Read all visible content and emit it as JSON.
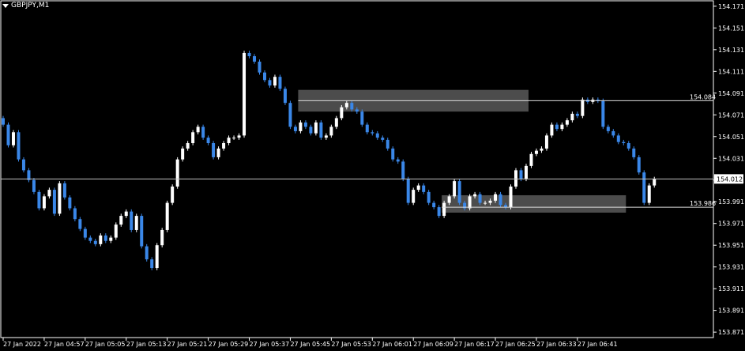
{
  "symbol_menu": {
    "label": "GBPJPY,M1"
  },
  "price_axis": {
    "ticks": [
      "154.171",
      "154.151",
      "154.131",
      "154.111",
      "154.091",
      "154.071",
      "154.051",
      "154.031",
      "154.011",
      "153.991",
      "153.971",
      "153.951",
      "153.931",
      "153.911",
      "153.891",
      "153.871"
    ],
    "current_price_label": "154.012"
  },
  "time_axis": {
    "labels": [
      "27 Jan 2022",
      "27 Jan 04:57",
      "27 Jan 05:05",
      "27 Jan 05:13",
      "27 Jan 05:21",
      "27 Jan 05:29",
      "27 Jan 05:37",
      "27 Jan 05:45",
      "27 Jan 05:53",
      "27 Jan 06:01",
      "27 Jan 06:09",
      "27 Jan 06:17",
      "27 Jan 06:25",
      "27 Jan 06:33",
      "27 Jan 06:41"
    ]
  },
  "levels": [
    {
      "price": 154.084,
      "label": "154.084"
    },
    {
      "price": 153.986,
      "label": "153.986"
    }
  ],
  "colors": {
    "bull": "#ffffff",
    "bear": "#3a87e8",
    "background": "#000000",
    "grid": "#ffffff",
    "zone": "#595959"
  },
  "chart_data": {
    "type": "candlestick",
    "symbol": "GBPJPY",
    "timeframe": "M1",
    "ylim": [
      153.866,
      154.176
    ],
    "current_price": 154.012,
    "zones": [
      {
        "from_time": "05:47",
        "to_time": "06:31",
        "low": 154.074,
        "high": 154.094
      },
      {
        "from_time": "06:15",
        "to_time": "06:50",
        "low": 153.981,
        "high": 153.997
      }
    ],
    "close_series": [
      154.062,
      154.043,
      154.055,
      154.03,
      154.02,
      154.011,
      154.0,
      153.985,
      153.996,
      154.002,
      153.98,
      154.008,
      153.995,
      153.985,
      153.975,
      153.966,
      153.958,
      153.955,
      153.952,
      153.96,
      153.955,
      153.958,
      153.97,
      153.978,
      153.982,
      153.965,
      153.978,
      153.95,
      153.938,
      153.93,
      153.951,
      153.965,
      153.99,
      154.005,
      154.03,
      154.04,
      154.045,
      154.055,
      154.06,
      154.05,
      154.045,
      154.032,
      154.04,
      154.045,
      154.05,
      154.05,
      154.052,
      154.128,
      154.125,
      154.12,
      154.11,
      154.103,
      154.098,
      154.106,
      154.095,
      154.082,
      154.06,
      154.056,
      154.064,
      154.06,
      154.054,
      154.064,
      154.05,
      154.052,
      154.06,
      154.068,
      154.078,
      154.082,
      154.076,
      154.074,
      154.062,
      154.055,
      154.054,
      154.05,
      154.048,
      154.04,
      154.03,
      154.028,
      154.012,
      153.99,
      154.002,
      154.006,
      154.0,
      153.99,
      153.986,
      153.978,
      153.99,
      153.996,
      154.01,
      153.99,
      153.985,
      153.996,
      153.998,
      153.99,
      153.99,
      153.992,
      153.998,
      153.988,
      153.986,
      154.005,
      154.02,
      154.012,
      154.024,
      154.035,
      154.038,
      154.04,
      154.052,
      154.062,
      154.058,
      154.062,
      154.066,
      154.072,
      154.07,
      154.085,
      154.083,
      154.085,
      154.084,
      154.06,
      154.056,
      154.052,
      154.046,
      154.045,
      154.04,
      154.032,
      154.018,
      153.99,
      154.006,
      154.012
    ]
  }
}
